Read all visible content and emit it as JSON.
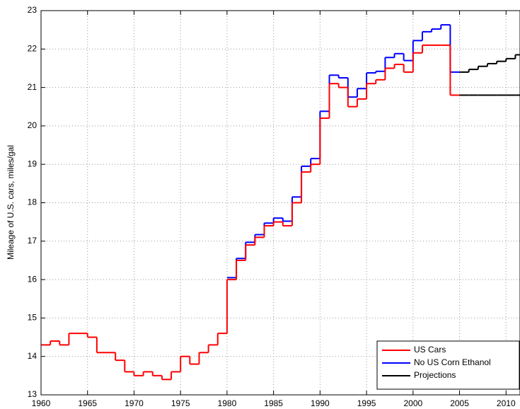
{
  "chart_data": {
    "type": "stairs",
    "y_label": "Mileage of U.S. cars, miles/gal",
    "xlim": [
      1960,
      2011.5
    ],
    "ylim": [
      13,
      23
    ],
    "xticks": [
      1960,
      1965,
      1970,
      1975,
      1980,
      1985,
      1990,
      1995,
      2000,
      2005,
      2010
    ],
    "yticks": [
      13,
      14,
      15,
      16,
      17,
      18,
      19,
      20,
      21,
      22,
      23
    ],
    "grid": true,
    "legend": "bottom-right",
    "series": [
      {
        "name": "No US Corn Ethanol",
        "color": "#0000ff",
        "x": [
          1960,
          1961,
          1962,
          1963,
          1964,
          1965,
          1966,
          1967,
          1968,
          1969,
          1970,
          1971,
          1972,
          1973,
          1974,
          1975,
          1976,
          1977,
          1978,
          1979,
          1980,
          1981,
          1982,
          1983,
          1984,
          1985,
          1986,
          1987,
          1988,
          1989,
          1990,
          1991,
          1992,
          1993,
          1994,
          1995,
          1996,
          1997,
          1998,
          1999,
          2000,
          2001,
          2002,
          2003,
          2004
        ],
        "values": [
          null,
          null,
          null,
          null,
          null,
          null,
          null,
          null,
          null,
          null,
          null,
          null,
          null,
          null,
          null,
          null,
          null,
          null,
          null,
          null,
          16.05,
          16.55,
          16.97,
          17.17,
          17.47,
          17.6,
          17.52,
          18.15,
          18.95,
          19.15,
          20.38,
          21.32,
          21.25,
          20.75,
          20.97,
          21.38,
          21.42,
          21.78,
          21.88,
          21.7,
          22.22,
          22.45,
          22.52,
          22.63,
          21.4
        ]
      },
      {
        "name": "US Cars",
        "color": "#ff0000",
        "x": [
          1960,
          1961,
          1962,
          1963,
          1964,
          1965,
          1966,
          1967,
          1968,
          1969,
          1970,
          1971,
          1972,
          1973,
          1974,
          1975,
          1976,
          1977,
          1978,
          1979,
          1980,
          1981,
          1982,
          1983,
          1984,
          1985,
          1986,
          1987,
          1988,
          1989,
          1990,
          1991,
          1992,
          1993,
          1994,
          1995,
          1996,
          1997,
          1998,
          1999,
          2000,
          2001,
          2002,
          2003,
          2004
        ],
        "values": [
          14.3,
          14.4,
          14.3,
          14.6,
          14.6,
          14.5,
          14.1,
          14.1,
          13.9,
          13.6,
          13.5,
          13.6,
          13.5,
          13.4,
          13.6,
          14.0,
          13.8,
          14.1,
          14.3,
          14.6,
          16.0,
          16.5,
          16.9,
          17.1,
          17.4,
          17.5,
          17.4,
          18.0,
          18.8,
          19.0,
          20.2,
          21.1,
          21.0,
          20.5,
          20.7,
          21.1,
          21.2,
          21.5,
          21.6,
          21.4,
          21.9,
          22.1,
          22.1,
          22.1,
          20.8
        ]
      },
      {
        "name": "Projections",
        "color": "#000000",
        "x": [
          2005,
          2006,
          2007,
          2008,
          2009,
          2010,
          2011
        ],
        "values": [
          21.4,
          21.47,
          21.55,
          21.62,
          21.68,
          21.75,
          21.85
        ]
      },
      {
        "color": "#000000",
        "x": [
          2005,
          2006,
          2007,
          2008,
          2009,
          2010,
          2011
        ],
        "values": [
          20.8,
          20.8,
          20.8,
          20.8,
          20.8,
          20.8,
          20.8
        ]
      }
    ]
  }
}
